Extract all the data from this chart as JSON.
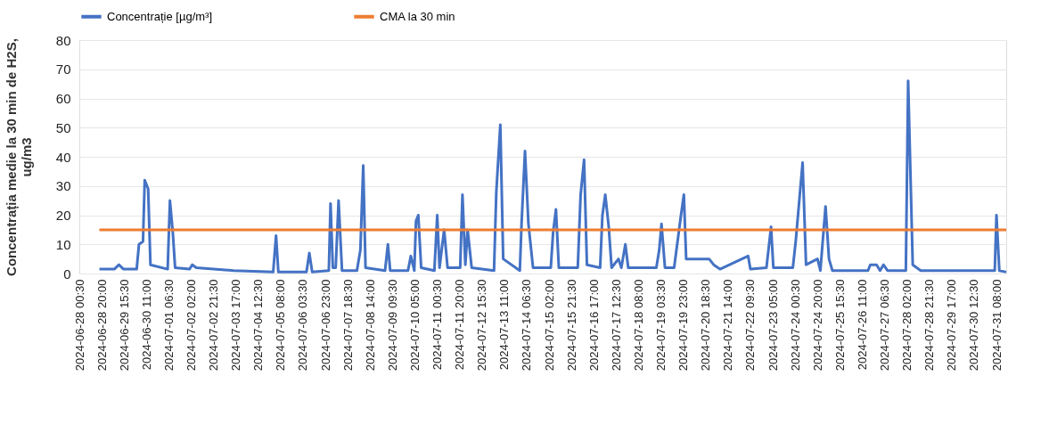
{
  "chart_data": {
    "type": "line",
    "ylabel": "Concentrația medie la 30 min de H2S,\nug/m3",
    "xlim": [
      "2024-06-28T00:30",
      "2024-07-31T16:30"
    ],
    "ylim": [
      0,
      80
    ],
    "yticks": [
      0,
      10,
      20,
      30,
      40,
      50,
      60,
      70,
      80
    ],
    "xticks": [
      {
        "value": "2024-06-28T00:30",
        "label": "2024-06-28 00:30"
      },
      {
        "value": "2024-06-28T20:00",
        "label": "2024-06-28 20:00"
      },
      {
        "value": "2024-06-29T15:30",
        "label": "2024-06-29 15:30"
      },
      {
        "value": "2024-06-30T11:00",
        "label": "2024-06-30 11:00"
      },
      {
        "value": "2024-07-01T06:30",
        "label": "2024-07-01 06:30"
      },
      {
        "value": "2024-07-02T02:00",
        "label": "2024-07-02 02:00"
      },
      {
        "value": "2024-07-02T21:30",
        "label": "2024-07-02 21:30"
      },
      {
        "value": "2024-07-03T17:00",
        "label": "2024-07-03 17:00"
      },
      {
        "value": "2024-07-04T12:30",
        "label": "2024-07-04 12:30"
      },
      {
        "value": "2024-07-05T08:00",
        "label": "2024-07-05 08:00"
      },
      {
        "value": "2024-07-06T03:30",
        "label": "2024-07-06 03:30"
      },
      {
        "value": "2024-07-06T23:00",
        "label": "2024-07-06 23:00"
      },
      {
        "value": "2024-07-07T18:30",
        "label": "2024-07-07 18:30"
      },
      {
        "value": "2024-07-08T14:00",
        "label": "2024-07-08 14:00"
      },
      {
        "value": "2024-07-09T09:30",
        "label": "2024-07-09 09:30"
      },
      {
        "value": "2024-07-10T05:00",
        "label": "2024-07-10 05:00"
      },
      {
        "value": "2024-07-11T00:30",
        "label": "2024-07-11 00:30"
      },
      {
        "value": "2024-07-11T20:00",
        "label": "2024-07-11 20:00"
      },
      {
        "value": "2024-07-12T15:30",
        "label": "2024-07-12 15:30"
      },
      {
        "value": "2024-07-13T11:00",
        "label": "2024-07-13 11:00"
      },
      {
        "value": "2024-07-14T06:30",
        "label": "2024-07-14 06:30"
      },
      {
        "value": "2024-07-15T02:00",
        "label": "2024-07-15 02:00"
      },
      {
        "value": "2024-07-15T21:30",
        "label": "2024-07-15 21:30"
      },
      {
        "value": "2024-07-16T17:00",
        "label": "2024-07-16 17:00"
      },
      {
        "value": "2024-07-17T12:30",
        "label": "2024-07-17 12:30"
      },
      {
        "value": "2024-07-18T08:00",
        "label": "2024-07-18 08:00"
      },
      {
        "value": "2024-07-19T03:30",
        "label": "2024-07-19 03:30"
      },
      {
        "value": "2024-07-19T23:00",
        "label": "2024-07-19 23:00"
      },
      {
        "value": "2024-07-20T18:30",
        "label": "2024-07-20 18:30"
      },
      {
        "value": "2024-07-21T14:00",
        "label": "2024-07-21 14:00"
      },
      {
        "value": "2024-07-22T09:30",
        "label": "2024-07-22 09:30"
      },
      {
        "value": "2024-07-23T05:00",
        "label": "2024-07-23 05:00"
      },
      {
        "value": "2024-07-24T00:30",
        "label": "2024-07-24 00:30"
      },
      {
        "value": "2024-07-24T20:00",
        "label": "2024-07-24 20:00"
      },
      {
        "value": "2024-07-25T15:30",
        "label": "2024-07-25 15:30"
      },
      {
        "value": "2024-07-26T11:00",
        "label": "2024-07-26 11:00"
      },
      {
        "value": "2024-07-27T06:30",
        "label": "2024-07-27 06:30"
      },
      {
        "value": "2024-07-28T02:00",
        "label": "2024-07-28 02:00"
      },
      {
        "value": "2024-07-28T21:30",
        "label": "2024-07-28 21:30"
      },
      {
        "value": "2024-07-29T17:00",
        "label": "2024-07-29 17:00"
      },
      {
        "value": "2024-07-30T12:30",
        "label": "2024-07-30 12:30"
      },
      {
        "value": "2024-07-31T08:00",
        "label": "2024-07-31 08:00"
      }
    ],
    "grid": "y",
    "legend": "top",
    "line_style": "solid",
    "marker": "none",
    "series": [
      {
        "name": "Concentrație [µg/m³]",
        "color": "#4472c4",
        "x": [
          "2024-06-28T18:00",
          "2024-06-29T07:00",
          "2024-06-29T11:00",
          "2024-06-29T15:00",
          "2024-06-30T02:30",
          "2024-06-30T04:30",
          "2024-06-30T08:00",
          "2024-06-30T09:30",
          "2024-06-30T12:30",
          "2024-06-30T14:30",
          "2024-07-01T05:30",
          "2024-07-01T07:30",
          "2024-07-01T10:00",
          "2024-07-01T12:00",
          "2024-07-02T00:30",
          "2024-07-02T03:00",
          "2024-07-02T06:30",
          "2024-07-03T15:00",
          "2024-07-05T01:30",
          "2024-07-05T04:00",
          "2024-07-05T06:00",
          "2024-07-06T06:30",
          "2024-07-06T09:00",
          "2024-07-06T11:30",
          "2024-07-07T02:00",
          "2024-07-07T03:30",
          "2024-07-07T05:30",
          "2024-07-07T08:00",
          "2024-07-07T10:30",
          "2024-07-07T13:30",
          "2024-07-08T02:30",
          "2024-07-08T05:30",
          "2024-07-08T08:00",
          "2024-07-08T10:00",
          "2024-07-09T03:00",
          "2024-07-09T05:30",
          "2024-07-09T07:30",
          "2024-07-09T23:00",
          "2024-07-10T01:30",
          "2024-07-10T04:30",
          "2024-07-10T06:00",
          "2024-07-10T08:00",
          "2024-07-10T10:30",
          "2024-07-10T22:00",
          "2024-07-11T00:30",
          "2024-07-11T02:30",
          "2024-07-11T06:30",
          "2024-07-11T09:30",
          "2024-07-11T20:30",
          "2024-07-11T22:30",
          "2024-07-12T01:00",
          "2024-07-12T03:00",
          "2024-07-12T06:30",
          "2024-07-13T02:00",
          "2024-07-13T04:00",
          "2024-07-13T07:30",
          "2024-07-13T10:00",
          "2024-07-14T00:30",
          "2024-07-14T02:00",
          "2024-07-14T05:00",
          "2024-07-14T08:00",
          "2024-07-14T12:00",
          "2024-07-15T03:30",
          "2024-07-15T05:30",
          "2024-07-15T08:00",
          "2024-07-15T10:30",
          "2024-07-16T03:00",
          "2024-07-16T05:30",
          "2024-07-16T08:30",
          "2024-07-16T11:00",
          "2024-07-16T22:30",
          "2024-07-17T00:30",
          "2024-07-17T03:00",
          "2024-07-17T06:00",
          "2024-07-17T08:30",
          "2024-07-17T14:30",
          "2024-07-17T17:00",
          "2024-07-17T20:30",
          "2024-07-17T23:00",
          "2024-07-18T23:30",
          "2024-07-19T02:00",
          "2024-07-19T04:00",
          "2024-07-19T07:00",
          "2024-07-19T15:00",
          "2024-07-19T17:00",
          "2024-07-19T21:00",
          "2024-07-19T23:30",
          "2024-07-20T01:30",
          "2024-07-20T21:30",
          "2024-07-21T01:30",
          "2024-07-21T07:00",
          "2024-07-22T07:30",
          "2024-07-22T09:30",
          "2024-07-22T23:30",
          "2024-07-23T03:30",
          "2024-07-23T05:30",
          "2024-07-23T22:30",
          "2024-07-24T01:00",
          "2024-07-24T07:00",
          "2024-07-24T10:00",
          "2024-07-24T20:00",
          "2024-07-24T22:30",
          "2024-07-25T03:00",
          "2024-07-25T06:00",
          "2024-07-25T09:00",
          "2024-07-26T16:00",
          "2024-07-26T18:00",
          "2024-07-26T23:30",
          "2024-07-27T02:30",
          "2024-07-27T05:30",
          "2024-07-27T09:00",
          "2024-07-28T01:00",
          "2024-07-28T03:00",
          "2024-07-28T07:00",
          "2024-07-28T14:00",
          "2024-07-31T06:30",
          "2024-07-31T08:00",
          "2024-07-31T10:30",
          "2024-07-31T16:30"
        ],
        "values": [
          1.5,
          1.5,
          3,
          1.5,
          1.5,
          10,
          11,
          32,
          29,
          3,
          1.5,
          25,
          14,
          2,
          1.5,
          3,
          2,
          1,
          0.5,
          13,
          0.5,
          0.5,
          7,
          0.5,
          1,
          24,
          2,
          2,
          25,
          1,
          1,
          8,
          37,
          2,
          1,
          10,
          1,
          1,
          6,
          1,
          18,
          20,
          2,
          1,
          20,
          2,
          15,
          2,
          2,
          27,
          3,
          15,
          2,
          1,
          28,
          51,
          5,
          1,
          17,
          42,
          17,
          2,
          2,
          14,
          22,
          2,
          2,
          27,
          39,
          3,
          2,
          20,
          27,
          16,
          2,
          5,
          2,
          10,
          2,
          2,
          8,
          17,
          2,
          2,
          8,
          20,
          27,
          5,
          5,
          3,
          1.5,
          6,
          1.5,
          2,
          16,
          2,
          2,
          11,
          38,
          3,
          5,
          1,
          23,
          5,
          1,
          1,
          3,
          3,
          1,
          3,
          1,
          1,
          66,
          3,
          1,
          1,
          20,
          1,
          0.5
        ]
      },
      {
        "name": "CMA la 30 min",
        "color": "#ed7d31",
        "x": [
          "2024-06-28T18:00",
          "2024-07-31T16:30"
        ],
        "values": [
          15,
          15
        ]
      }
    ]
  }
}
